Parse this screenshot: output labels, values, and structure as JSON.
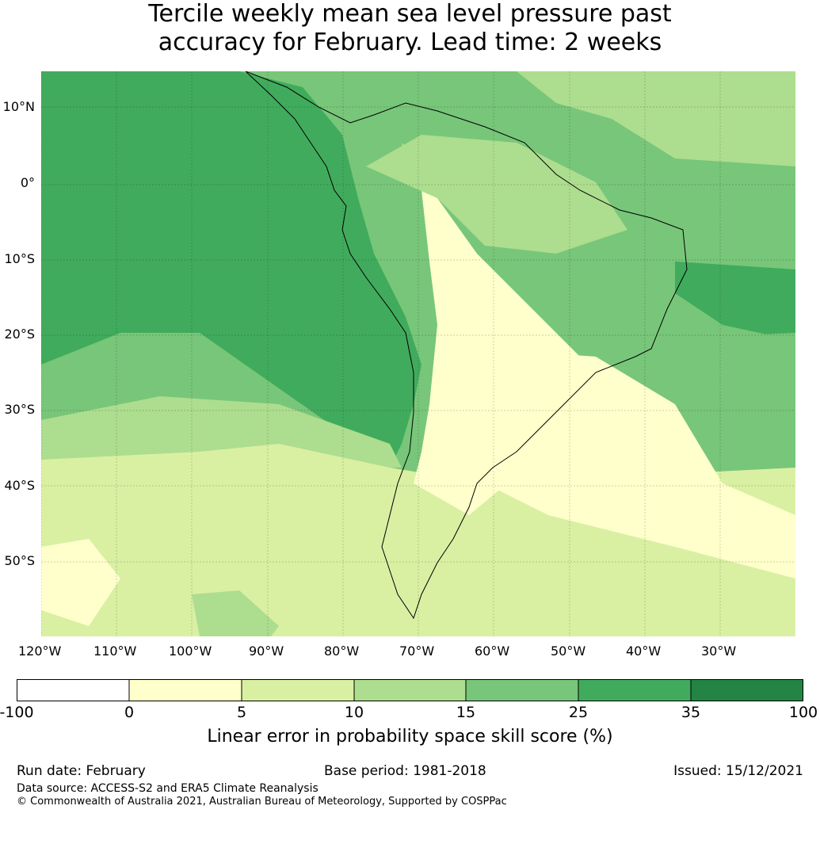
{
  "title_line1": "Tercile weekly mean sea level pressure past",
  "title_line2": "accuracy for February. Lead time: 2 weeks",
  "lat_labels": [
    "10°N",
    "0°",
    "10°S",
    "20°S",
    "30°S",
    "40°S",
    "50°S"
  ],
  "lon_labels": [
    "120°W",
    "110°W",
    "100°W",
    "90°W",
    "80°W",
    "70°W",
    "60°W",
    "50°W",
    "40°W",
    "30°W"
  ],
  "colorbar": {
    "ticks": [
      "-100",
      "0",
      "5",
      "10",
      "15",
      "25",
      "35",
      "100"
    ],
    "colors": [
      "#ffffff",
      "#ffffcc",
      "#d9f0a3",
      "#addd8e",
      "#78c679",
      "#41ab5d",
      "#238443"
    ],
    "label": "Linear error in probability space skill score (%)"
  },
  "footer": {
    "run_date": "Run date: February",
    "base_period": "Base period: 1981-2018",
    "issued": "Issued: 15/12/2021",
    "data_source": "Data source: ACCESS-S2 and ERA5 Climate Reanalysis",
    "copyright": "© Commonwealth of Australia 2021, Australian Bureau of Meteorology, Supported by COSPPac"
  }
}
